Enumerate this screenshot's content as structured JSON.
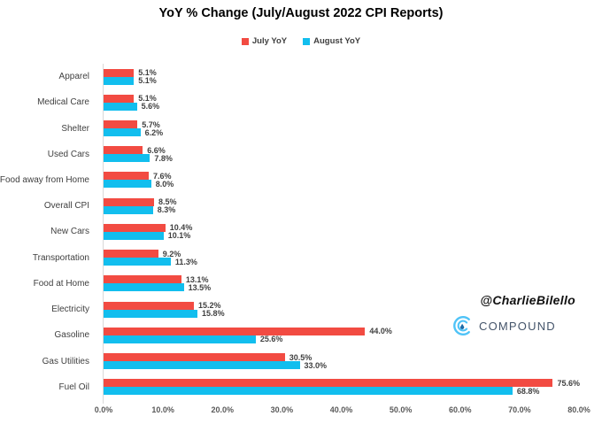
{
  "chart_data": {
    "type": "bar",
    "orientation": "horizontal",
    "title": "YoY % Change (July/August 2022 CPI Reports)",
    "categories": [
      "Apparel",
      "Medical Care",
      "Shelter",
      "Used Cars",
      "Food away from Home",
      "Overall CPI",
      "New Cars",
      "Transportation",
      "Food at Home",
      "Electricity",
      "Gasoline",
      "Gas Utilities",
      "Fuel Oil"
    ],
    "series": [
      {
        "name": "July YoY",
        "color": "#F24B42",
        "values": [
          5.1,
          5.1,
          5.7,
          6.6,
          7.6,
          8.5,
          10.4,
          9.2,
          13.1,
          15.2,
          44.0,
          30.5,
          75.6
        ],
        "labels": [
          "5.1%",
          "5.1%",
          "5.7%",
          "6.6%",
          "7.6%",
          "8.5%",
          "10.4%",
          "9.2%",
          "13.1%",
          "15.2%",
          "44.0%",
          "30.5%",
          "75.6%"
        ]
      },
      {
        "name": "August YoY",
        "color": "#12BEEE",
        "values": [
          5.1,
          5.6,
          6.2,
          7.8,
          8.0,
          8.3,
          10.1,
          11.3,
          13.5,
          15.8,
          25.6,
          33.0,
          68.8
        ],
        "labels": [
          "5.1%",
          "5.6%",
          "6.2%",
          "7.8%",
          "8.0%",
          "8.3%",
          "10.1%",
          "11.3%",
          "13.5%",
          "15.8%",
          "25.6%",
          "33.0%",
          "68.8%"
        ]
      }
    ],
    "xlim": [
      0,
      80
    ],
    "x_ticks": [
      "0.0%",
      "10.0%",
      "20.0%",
      "30.0%",
      "40.0%",
      "50.0%",
      "60.0%",
      "70.0%",
      "80.0%"
    ],
    "legend_position": "top",
    "grid": false
  },
  "watermark": {
    "handle": "@CharlieBilello",
    "brand": "COMPOUND"
  },
  "colors": {
    "july": "#F24B42",
    "august": "#12BEEE",
    "axis_text": "#595959",
    "label_text": "#404040",
    "axis_line": "#D9D9D9",
    "brand_text": "#44546A",
    "logo_blue": "#4FC3F7"
  }
}
